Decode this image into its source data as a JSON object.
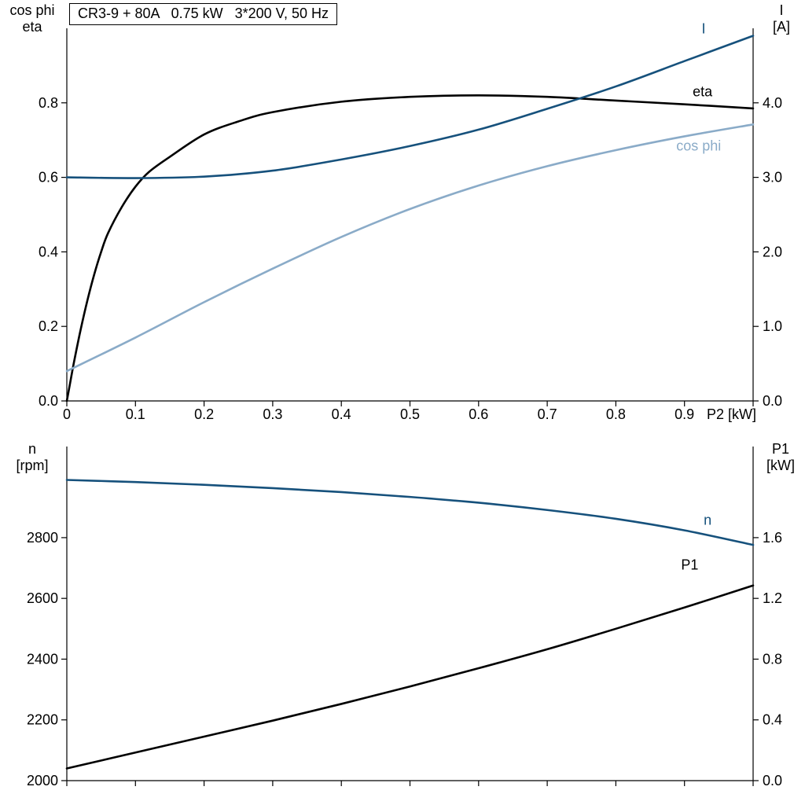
{
  "title_box": "CR3-9 + 80A   0.75 kW   3*200 V, 50 Hz",
  "colors": {
    "black": "#000000",
    "dark_blue": "#16517c",
    "light_blue": "#8aabc8",
    "axis": "#000000",
    "background": "#ffffff"
  },
  "chart_data": [
    {
      "type": "line",
      "title": "CR3-9 + 80A   0.75 kW   3*200 V, 50 Hz",
      "grid": false,
      "legend": "curve-end labels",
      "x_axis": {
        "label": "P2 [kW]",
        "range": [
          0,
          1
        ],
        "ticks": [
          0,
          0.1,
          0.2,
          0.3,
          0.4,
          0.5,
          0.6,
          0.7,
          0.8,
          0.9,
          1.0
        ],
        "tick_labels": [
          "0",
          "0.1",
          "0.2",
          "0.3",
          "0.4",
          "0.5",
          "0.6",
          "0.7",
          "0.8",
          "0.9",
          ""
        ]
      },
      "y_left": {
        "corner": [
          "cos phi",
          "eta"
        ],
        "range": [
          0,
          1
        ],
        "ticks": [
          0,
          0.2,
          0.4,
          0.6,
          0.8
        ],
        "tick_labels": [
          "0.0",
          "0.2",
          "0.4",
          "0.6",
          "0.8"
        ]
      },
      "y_right": {
        "corner": [
          "I",
          "[A]"
        ],
        "range": [
          0,
          5
        ],
        "ticks": [
          0,
          1,
          2,
          3,
          4
        ],
        "tick_labels": [
          "0.0",
          "1.0",
          "2.0",
          "3.0",
          "4.0"
        ]
      },
      "series": [
        {
          "name": "eta",
          "label": "eta",
          "axis": "left",
          "color": "#000000",
          "label_at": {
            "x": 0.912,
            "y": 0.818,
            "anchor": "start"
          },
          "x": [
            0,
            0.005,
            0.01,
            0.02,
            0.03,
            0.04,
            0.05,
            0.06,
            0.08,
            0.1,
            0.12,
            0.15,
            0.2,
            0.25,
            0.3,
            0.4,
            0.5,
            0.6,
            0.7,
            0.8,
            0.9,
            1.0
          ],
          "y": [
            0,
            0.05,
            0.1,
            0.19,
            0.27,
            0.34,
            0.4,
            0.45,
            0.52,
            0.575,
            0.615,
            0.655,
            0.715,
            0.75,
            0.775,
            0.803,
            0.816,
            0.82,
            0.816,
            0.806,
            0.796,
            0.785
          ]
        },
        {
          "name": "I",
          "label": "I",
          "axis": "right",
          "color": "#16517c",
          "label_at": {
            "x": 0.925,
            "y": 4.93,
            "anchor": "start"
          },
          "x": [
            0,
            0.1,
            0.2,
            0.3,
            0.4,
            0.5,
            0.6,
            0.7,
            0.8,
            0.9,
            1.0
          ],
          "y": [
            3.0,
            2.99,
            3.01,
            3.09,
            3.24,
            3.42,
            3.64,
            3.92,
            4.22,
            4.56,
            4.9
          ]
        },
        {
          "name": "cos phi",
          "label": "cos phi",
          "axis": "left",
          "color": "#8aabc8",
          "label_at": {
            "x": 0.888,
            "y": 0.672,
            "anchor": "start"
          },
          "x": [
            0,
            0.1,
            0.2,
            0.3,
            0.4,
            0.5,
            0.6,
            0.7,
            0.8,
            0.9,
            1.0
          ],
          "y": [
            0.08,
            0.17,
            0.265,
            0.355,
            0.44,
            0.515,
            0.578,
            0.63,
            0.673,
            0.71,
            0.742
          ]
        }
      ]
    },
    {
      "type": "line",
      "title": "",
      "grid": false,
      "legend": "curve-end labels",
      "x_axis": {
        "label": "",
        "range": [
          0,
          1
        ],
        "ticks": [
          0,
          0.1,
          0.2,
          0.3,
          0.4,
          0.5,
          0.6,
          0.7,
          0.8,
          0.9,
          1.0
        ],
        "tick_labels": [
          "",
          "",
          "",
          "",
          "",
          "",
          "",
          "",
          "",
          "",
          ""
        ]
      },
      "y_left": {
        "corner": [
          "n",
          "[rpm]"
        ],
        "range": [
          2000,
          3100
        ],
        "ticks": [
          2000,
          2200,
          2400,
          2600,
          2800
        ],
        "tick_labels": [
          "2000",
          "2200",
          "2400",
          "2600",
          "2800"
        ]
      },
      "y_right": {
        "corner": [
          "P1",
          "[kW]"
        ],
        "range": [
          0,
          2.2
        ],
        "ticks": [
          0,
          0.4,
          0.8,
          1.2,
          1.6
        ],
        "tick_labels": [
          "0.0",
          "0.4",
          "0.8",
          "1.2",
          "1.6"
        ]
      },
      "series": [
        {
          "name": "n",
          "label": "n",
          "axis": "left",
          "color": "#16517c",
          "label_at": {
            "x": 0.928,
            "y": 2843,
            "anchor": "start"
          },
          "x": [
            0,
            0.1,
            0.2,
            0.3,
            0.4,
            0.5,
            0.6,
            0.7,
            0.8,
            0.9,
            1.0
          ],
          "y": [
            2990,
            2983,
            2974,
            2963,
            2950,
            2934,
            2915,
            2891,
            2862,
            2824,
            2776
          ]
        },
        {
          "name": "P1",
          "label": "P1",
          "axis": "right",
          "color": "#000000",
          "label_at": {
            "x": 0.895,
            "y": 1.39,
            "anchor": "start"
          },
          "x": [
            0,
            0.1,
            0.2,
            0.3,
            0.4,
            0.5,
            0.6,
            0.7,
            0.8,
            0.9,
            1.0
          ],
          "y": [
            0.08,
            0.185,
            0.29,
            0.395,
            0.505,
            0.62,
            0.74,
            0.865,
            1.0,
            1.14,
            1.285
          ]
        }
      ]
    }
  ]
}
